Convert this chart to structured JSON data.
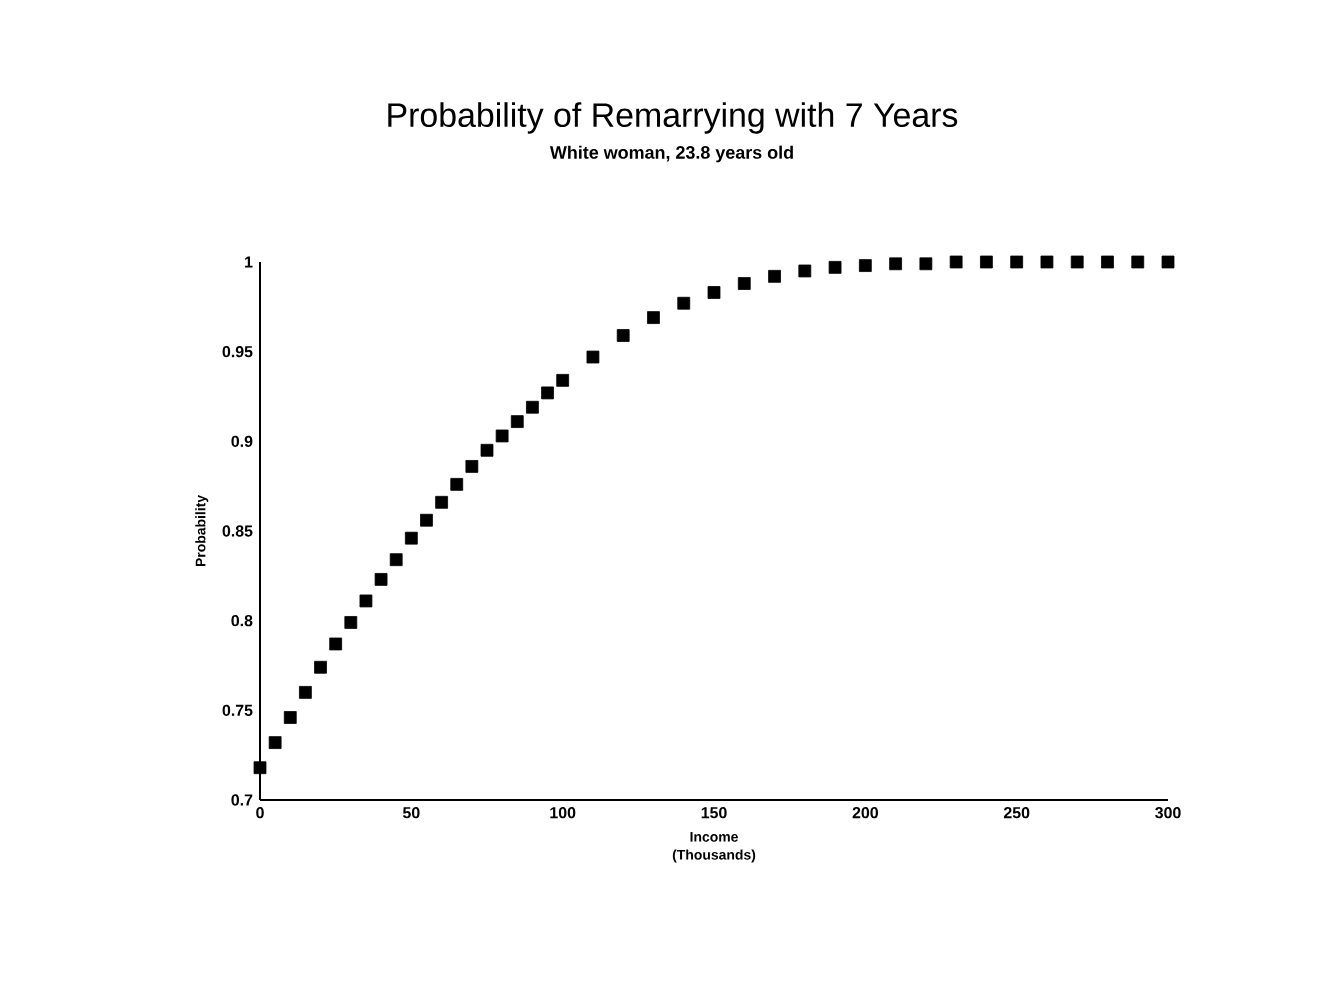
{
  "chart_data": {
    "type": "scatter",
    "title": "Probability of Remarrying with 7 Years",
    "subtitle": "White woman,  23.8 years old",
    "xlabel": "Income (Thousands)",
    "ylabel": "Probability",
    "x": [
      0,
      5,
      10,
      15,
      20,
      25,
      30,
      35,
      40,
      45,
      50,
      55,
      60,
      65,
      70,
      75,
      80,
      85,
      90,
      95,
      100,
      110,
      120,
      130,
      140,
      150,
      160,
      170,
      180,
      190,
      200,
      210,
      220,
      230,
      240,
      250,
      260,
      270,
      280,
      290,
      300
    ],
    "series": [
      {
        "color": "#000000",
        "values": [
          0.718,
          0.732,
          0.746,
          0.76,
          0.774,
          0.787,
          0.799,
          0.811,
          0.823,
          0.834,
          0.846,
          0.856,
          0.866,
          0.876,
          0.886,
          0.895,
          0.903,
          0.911,
          0.919,
          0.927,
          0.934,
          0.947,
          0.959,
          0.969,
          0.977,
          0.983,
          0.988,
          0.992,
          0.995,
          0.997,
          0.998,
          0.999,
          0.999,
          1,
          1,
          1,
          1,
          1,
          1,
          1,
          1
        ]
      }
    ],
    "xlim": [
      0,
      300
    ],
    "xticks": [
      0,
      50,
      100,
      150,
      200,
      250,
      300
    ],
    "ylim": [
      0.7,
      1
    ],
    "yticks": [
      0.7,
      0.75,
      0.8,
      0.85,
      0.9,
      0.95,
      1
    ],
    "marker": "square"
  }
}
